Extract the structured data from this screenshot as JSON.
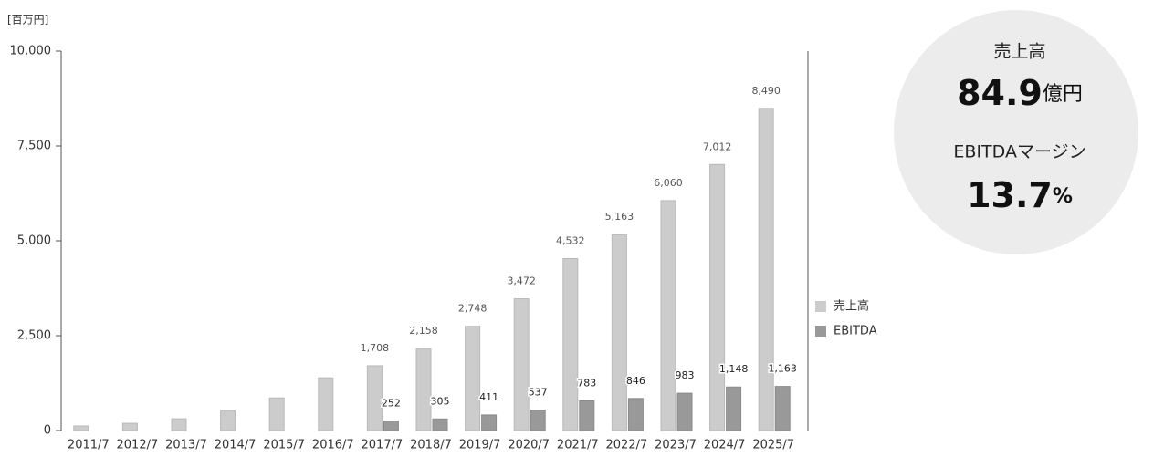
{
  "chart_data": {
    "type": "bar",
    "y_unit": "[百万円]",
    "categories": [
      "2011/7",
      "2012/7",
      "2013/7",
      "2014/7",
      "2015/7",
      "2016/7",
      "2017/7",
      "2018/7",
      "2019/7",
      "2020/7",
      "2021/7",
      "2022/7",
      "2023/7",
      "2024/7",
      "2025/7"
    ],
    "series": [
      {
        "name": "売上高",
        "color": "#cccccc",
        "values": [
          120,
          190,
          310,
          530,
          860,
          1390,
          1708,
          2158,
          2748,
          3472,
          4532,
          5163,
          6060,
          7012,
          8490
        ],
        "value_labels": [
          null,
          null,
          null,
          null,
          null,
          null,
          "1,708",
          "2,158",
          "2,748",
          "3,472",
          "4,532",
          "5,163",
          "6,060",
          "7,012",
          "8,490"
        ]
      },
      {
        "name": "EBITDA",
        "color": "#999999",
        "values": [
          null,
          null,
          null,
          null,
          null,
          null,
          252,
          305,
          411,
          537,
          783,
          846,
          983,
          1148,
          1163
        ],
        "value_labels": [
          null,
          null,
          null,
          null,
          null,
          null,
          "252",
          "305",
          "411",
          "537",
          "783",
          "846",
          "983",
          "1,148",
          "1,163"
        ]
      }
    ],
    "ylim": [
      0,
      10000
    ],
    "yticks": [
      0,
      {
        "value": 2500,
        "label": "2,500"
      },
      {
        "value": 5000,
        "label": "5,000"
      },
      {
        "value": 7500,
        "label": "7,500"
      },
      {
        "value": 10000,
        "label": "10,000"
      }
    ],
    "legend": "right"
  },
  "kpi": {
    "sales_label": "売上高",
    "sales_value": "84.9",
    "sales_unit": "億円",
    "margin_label": "EBITDAマージン",
    "margin_value": "13.7",
    "margin_unit": "%"
  }
}
